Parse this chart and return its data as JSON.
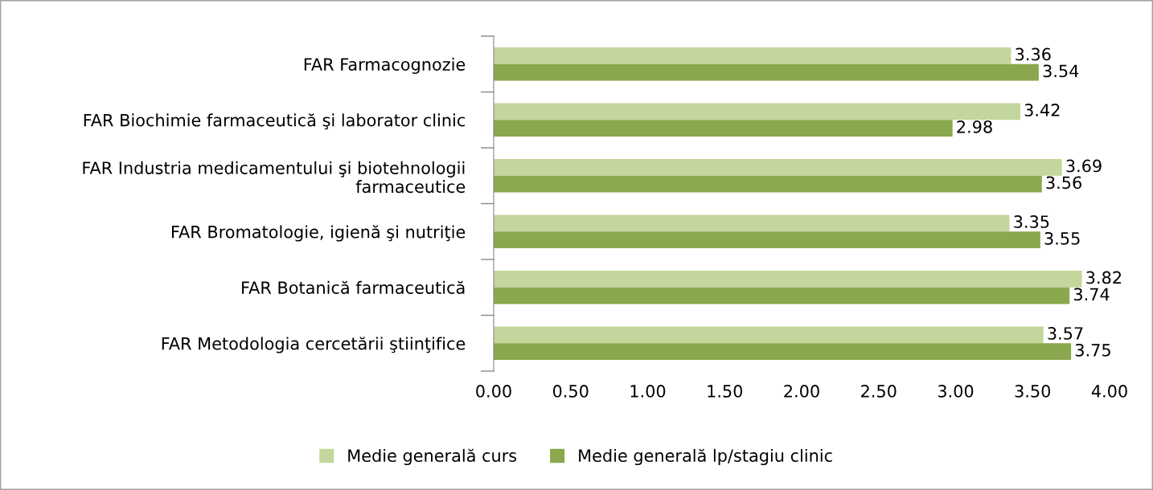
{
  "chart_data": {
    "type": "bar",
    "orientation": "horizontal",
    "categories": [
      "FAR Farmacognozie",
      "FAR Biochimie farmaceutică şi laborator clinic",
      "FAR Industria medicamentului şi biotehnologii\nfarmaceutice",
      "FAR Bromatologie, igienă şi nutriţie",
      "FAR Botanică farmaceutică",
      "FAR Metodologia cercetării ştiinţifice"
    ],
    "series": [
      {
        "name": "Medie generală curs",
        "color": "#c3d69b",
        "values": [
          3.36,
          3.42,
          3.69,
          3.35,
          3.82,
          3.57
        ]
      },
      {
        "name": "Medie generală lp/stagiu clinic",
        "color": "#8aa84e",
        "values": [
          3.54,
          2.98,
          3.56,
          3.55,
          3.74,
          3.75
        ]
      }
    ],
    "xlim": [
      0,
      4
    ],
    "xticks": [
      {
        "value": 0,
        "label": "0.00"
      },
      {
        "value": 0.5,
        "label": "0.50"
      },
      {
        "value": 1,
        "label": "1.00"
      },
      {
        "value": 1.5,
        "label": "1.50"
      },
      {
        "value": 2,
        "label": "2.00"
      },
      {
        "value": 2.5,
        "label": "2.50"
      },
      {
        "value": 3,
        "label": "3.00"
      },
      {
        "value": 3.5,
        "label": "3.50"
      },
      {
        "value": 4,
        "label": "4.00"
      }
    ],
    "data_labels": true,
    "grid": false,
    "legend": "bottom"
  }
}
